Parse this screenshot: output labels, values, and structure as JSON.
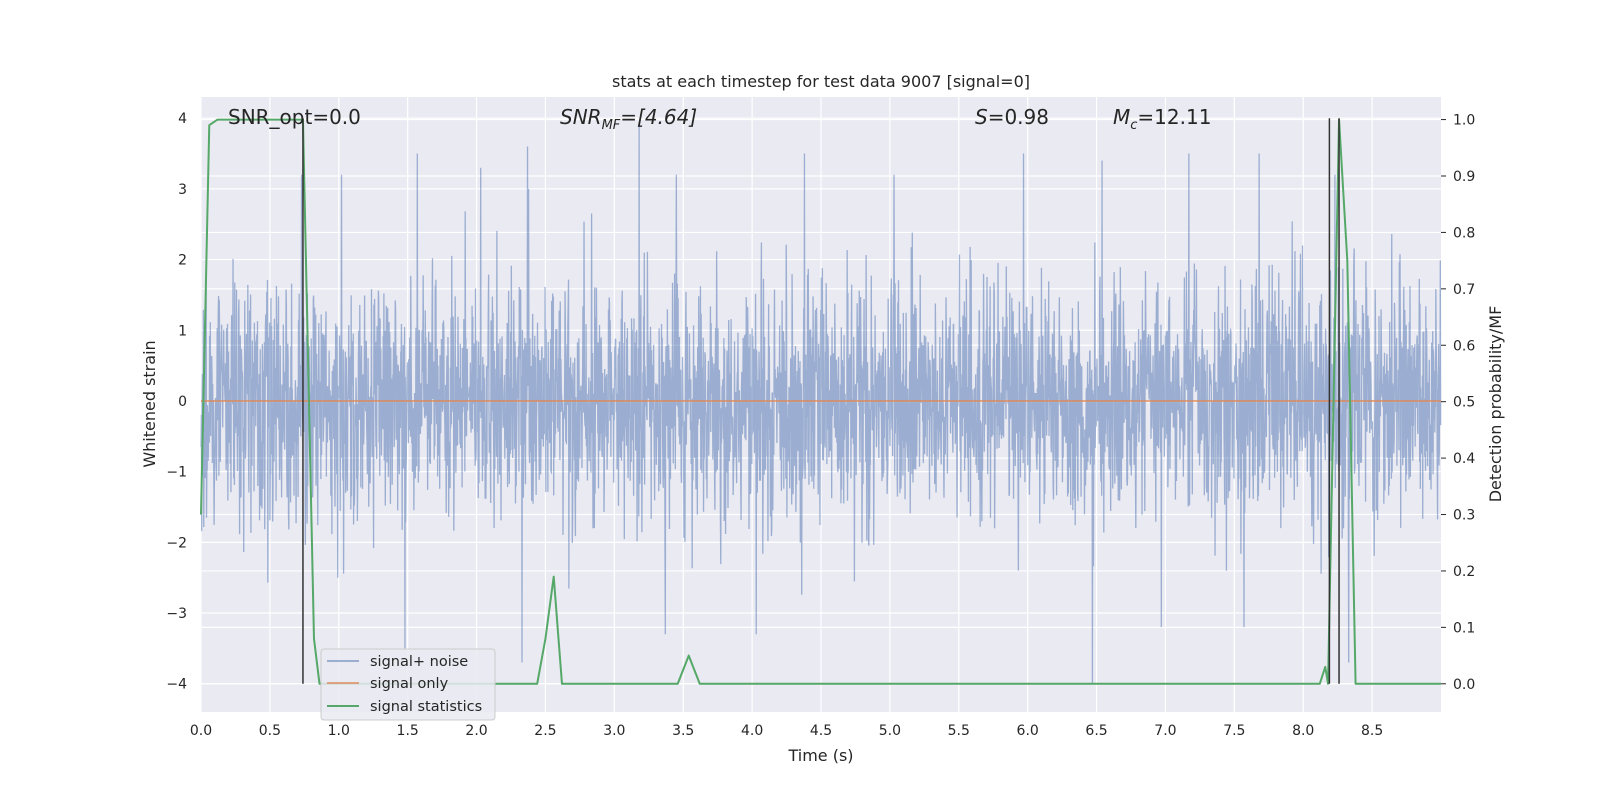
{
  "chart_data": {
    "type": "line",
    "title": "stats at each timestep for test data 9007 [signal=0]",
    "xlabel": "Time (s)",
    "ylabel": "Whitened strain",
    "y2label": "Detection probability/MF",
    "xlim": [
      0.0,
      9.0
    ],
    "ylim": [
      -4.4,
      4.3
    ],
    "y2lim": [
      -0.05,
      1.04
    ],
    "xticks": [
      "0.0",
      "0.5",
      "1.0",
      "1.5",
      "2.0",
      "2.5",
      "3.0",
      "3.5",
      "4.0",
      "4.5",
      "5.0",
      "5.5",
      "6.0",
      "6.5",
      "7.0",
      "7.5",
      "8.0",
      "8.5"
    ],
    "yticks": [
      "4",
      "3",
      "2",
      "1",
      "0",
      "−1",
      "−2",
      "−3",
      "−4"
    ],
    "y2ticks": [
      "1.0",
      "0.9",
      "0.8",
      "0.7",
      "0.6",
      "0.5",
      "0.4",
      "0.3",
      "0.2",
      "0.1",
      "0.0"
    ],
    "grid": true,
    "legend_position": "lower-left",
    "annotations": {
      "snr_opt": "SNR_opt=0.0",
      "snr_mf_main": "SNR",
      "snr_mf_sub": "MF",
      "snr_mf_rest": "=[4.64]",
      "s_main": "S",
      "s_rest": "=0.98",
      "mc_main": "M",
      "mc_sub": "c",
      "mc_rest": "=12.11"
    },
    "series": [
      {
        "name": "signal+ noise",
        "color": "#4c72b0",
        "sample_rate_hz": 400,
        "typical_envelope": [
          -1.7,
          1.7
        ],
        "peaks": [
          {
            "x": 0.73,
            "y": 3.2
          },
          {
            "x": 1.02,
            "y": 3.2
          },
          {
            "x": 1.57,
            "y": 3.5
          },
          {
            "x": 2.03,
            "y": 3.3
          },
          {
            "x": 2.37,
            "y": 3.6
          },
          {
            "x": 3.18,
            "y": 3.9
          },
          {
            "x": 3.45,
            "y": 3.2
          },
          {
            "x": 4.38,
            "y": 3.5
          },
          {
            "x": 5.03,
            "y": 3.2
          },
          {
            "x": 5.97,
            "y": 3.5
          },
          {
            "x": 6.54,
            "y": 3.4
          },
          {
            "x": 7.17,
            "y": 3.5
          },
          {
            "x": 7.68,
            "y": 3.5
          },
          {
            "x": 8.23,
            "y": 3.2
          }
        ],
        "troughs": [
          {
            "x": 1.48,
            "y": -3.5
          },
          {
            "x": 2.33,
            "y": -3.7
          },
          {
            "x": 3.37,
            "y": -3.3
          },
          {
            "x": 4.03,
            "y": -3.3
          },
          {
            "x": 6.47,
            "y": -4.0
          },
          {
            "x": 6.97,
            "y": -3.2
          },
          {
            "x": 7.57,
            "y": -3.2
          },
          {
            "x": 8.33,
            "y": -3.7
          }
        ]
      },
      {
        "name": "signal only",
        "color": "#dd8452",
        "x": [
          0.0,
          9.0
        ],
        "y": [
          0.0,
          0.0
        ]
      },
      {
        "name": "signal statistics",
        "color": "#55a868",
        "axis": "right",
        "x": [
          0.0,
          0.06,
          0.12,
          0.74,
          0.82,
          0.86,
          0.9,
          2.44,
          2.5,
          2.56,
          2.62,
          3.46,
          3.54,
          3.62,
          8.12,
          8.16,
          8.18,
          8.26,
          8.32,
          8.38,
          9.0
        ],
        "y": [
          0.3,
          0.99,
          1.0,
          1.0,
          0.08,
          0.0,
          0.0,
          0.0,
          0.08,
          0.19,
          0.0,
          0.0,
          0.05,
          0.0,
          0.0,
          0.03,
          0.0,
          1.0,
          0.75,
          0.0,
          0.0
        ]
      }
    ],
    "vlines": [
      {
        "x": 0.74,
        "y_from": -4.0,
        "y_to": 4.0,
        "color": "#333333"
      },
      {
        "x": 8.19,
        "y_from": -4.0,
        "y_to": 4.0,
        "color": "#333333"
      },
      {
        "x": 8.26,
        "y_from": -4.0,
        "y_to": 4.0,
        "color": "#333333"
      }
    ]
  }
}
